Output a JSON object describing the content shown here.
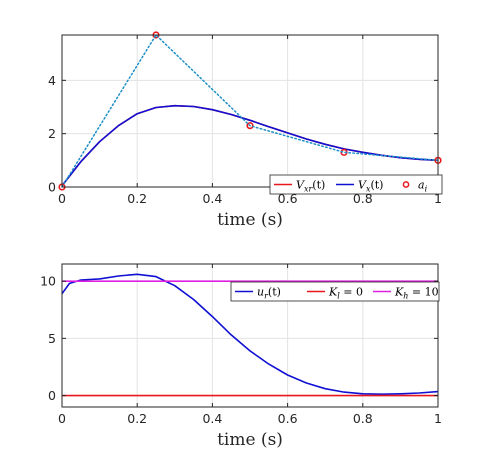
{
  "chart_data": [
    {
      "type": "line",
      "xlabel": "time (s)",
      "ylabel": "",
      "xlim": [
        0,
        1
      ],
      "ylim": [
        0,
        5.7
      ],
      "xticks": [
        "0",
        "0.2",
        "0.4",
        "0.6",
        "0.8",
        "1"
      ],
      "yticks": [
        "0",
        "2",
        "4"
      ],
      "grid": true,
      "legend_placement": "bottom-right",
      "series": [
        {
          "name": "V_xr(t)",
          "legend_label": "Vxr(t)",
          "style": "solid",
          "color": "#e8171b",
          "x": [
            0,
            0.05,
            0.1,
            0.15,
            0.2,
            0.25,
            0.3,
            0.35,
            0.4,
            0.45,
            0.5,
            0.55,
            0.6,
            0.65,
            0.7,
            0.75,
            0.8,
            0.85,
            0.9,
            0.95,
            1.0
          ],
          "y": [
            0.05,
            0.95,
            1.7,
            2.3,
            2.75,
            2.98,
            3.05,
            3.02,
            2.9,
            2.72,
            2.5,
            2.26,
            2.03,
            1.8,
            1.6,
            1.43,
            1.3,
            1.19,
            1.1,
            1.04,
            1.0
          ]
        },
        {
          "name": "V_x(t)",
          "legend_label": "Vx(t)",
          "style": "solid",
          "color": "#1010d4",
          "x": [
            0,
            0.05,
            0.1,
            0.15,
            0.2,
            0.25,
            0.3,
            0.35,
            0.4,
            0.45,
            0.5,
            0.55,
            0.6,
            0.65,
            0.7,
            0.75,
            0.8,
            0.85,
            0.9,
            0.95,
            1.0
          ],
          "y": [
            0.05,
            0.95,
            1.7,
            2.3,
            2.75,
            2.98,
            3.05,
            3.02,
            2.9,
            2.72,
            2.5,
            2.26,
            2.03,
            1.8,
            1.6,
            1.43,
            1.3,
            1.19,
            1.1,
            1.04,
            1.0
          ]
        },
        {
          "name": "a_i",
          "legend_label": "ai",
          "style": "markers",
          "color": "#e8171b",
          "x": [
            0,
            0.25,
            0.5,
            0.75,
            1.0
          ],
          "y": [
            0,
            5.7,
            2.3,
            1.3,
            1.0
          ]
        },
        {
          "name": "",
          "legend_label": "",
          "style": "dotted",
          "color": "#1c8fc8",
          "x": [
            0,
            0.25,
            0.5,
            0.75,
            1.0
          ],
          "y": [
            0,
            5.7,
            2.3,
            1.3,
            1.0
          ]
        }
      ]
    },
    {
      "type": "line",
      "xlabel": "time (s)",
      "ylabel": "",
      "xlim": [
        0,
        1
      ],
      "ylim": [
        -1,
        11.5
      ],
      "xticks": [
        "0",
        "0.2",
        "0.4",
        "0.6",
        "0.8",
        "1"
      ],
      "yticks": [
        "0",
        "5",
        "10"
      ],
      "grid": true,
      "legend_placement": "top-right",
      "series": [
        {
          "name": "u_r(t)",
          "legend_label": "ur(t)",
          "style": "solid",
          "color": "#1010d4",
          "x": [
            0,
            0.02,
            0.05,
            0.1,
            0.15,
            0.2,
            0.25,
            0.3,
            0.35,
            0.4,
            0.45,
            0.5,
            0.55,
            0.6,
            0.65,
            0.7,
            0.75,
            0.8,
            0.85,
            0.9,
            0.95,
            1.0
          ],
          "y": [
            8.9,
            9.8,
            10.1,
            10.2,
            10.45,
            10.6,
            10.4,
            9.6,
            8.4,
            6.9,
            5.3,
            3.9,
            2.75,
            1.8,
            1.1,
            0.6,
            0.3,
            0.15,
            0.12,
            0.15,
            0.22,
            0.35
          ]
        },
        {
          "name": "K_l = 0",
          "legend_label": "Kl = 0",
          "style": "solid",
          "color": "#e8171b",
          "x": [
            0,
            1
          ],
          "y": [
            0,
            0
          ]
        },
        {
          "name": "K_h = 10",
          "legend_label": "Kh = 10",
          "style": "solid",
          "color": "#e020e0",
          "x": [
            0,
            1
          ],
          "y": [
            10,
            10
          ]
        }
      ]
    }
  ]
}
